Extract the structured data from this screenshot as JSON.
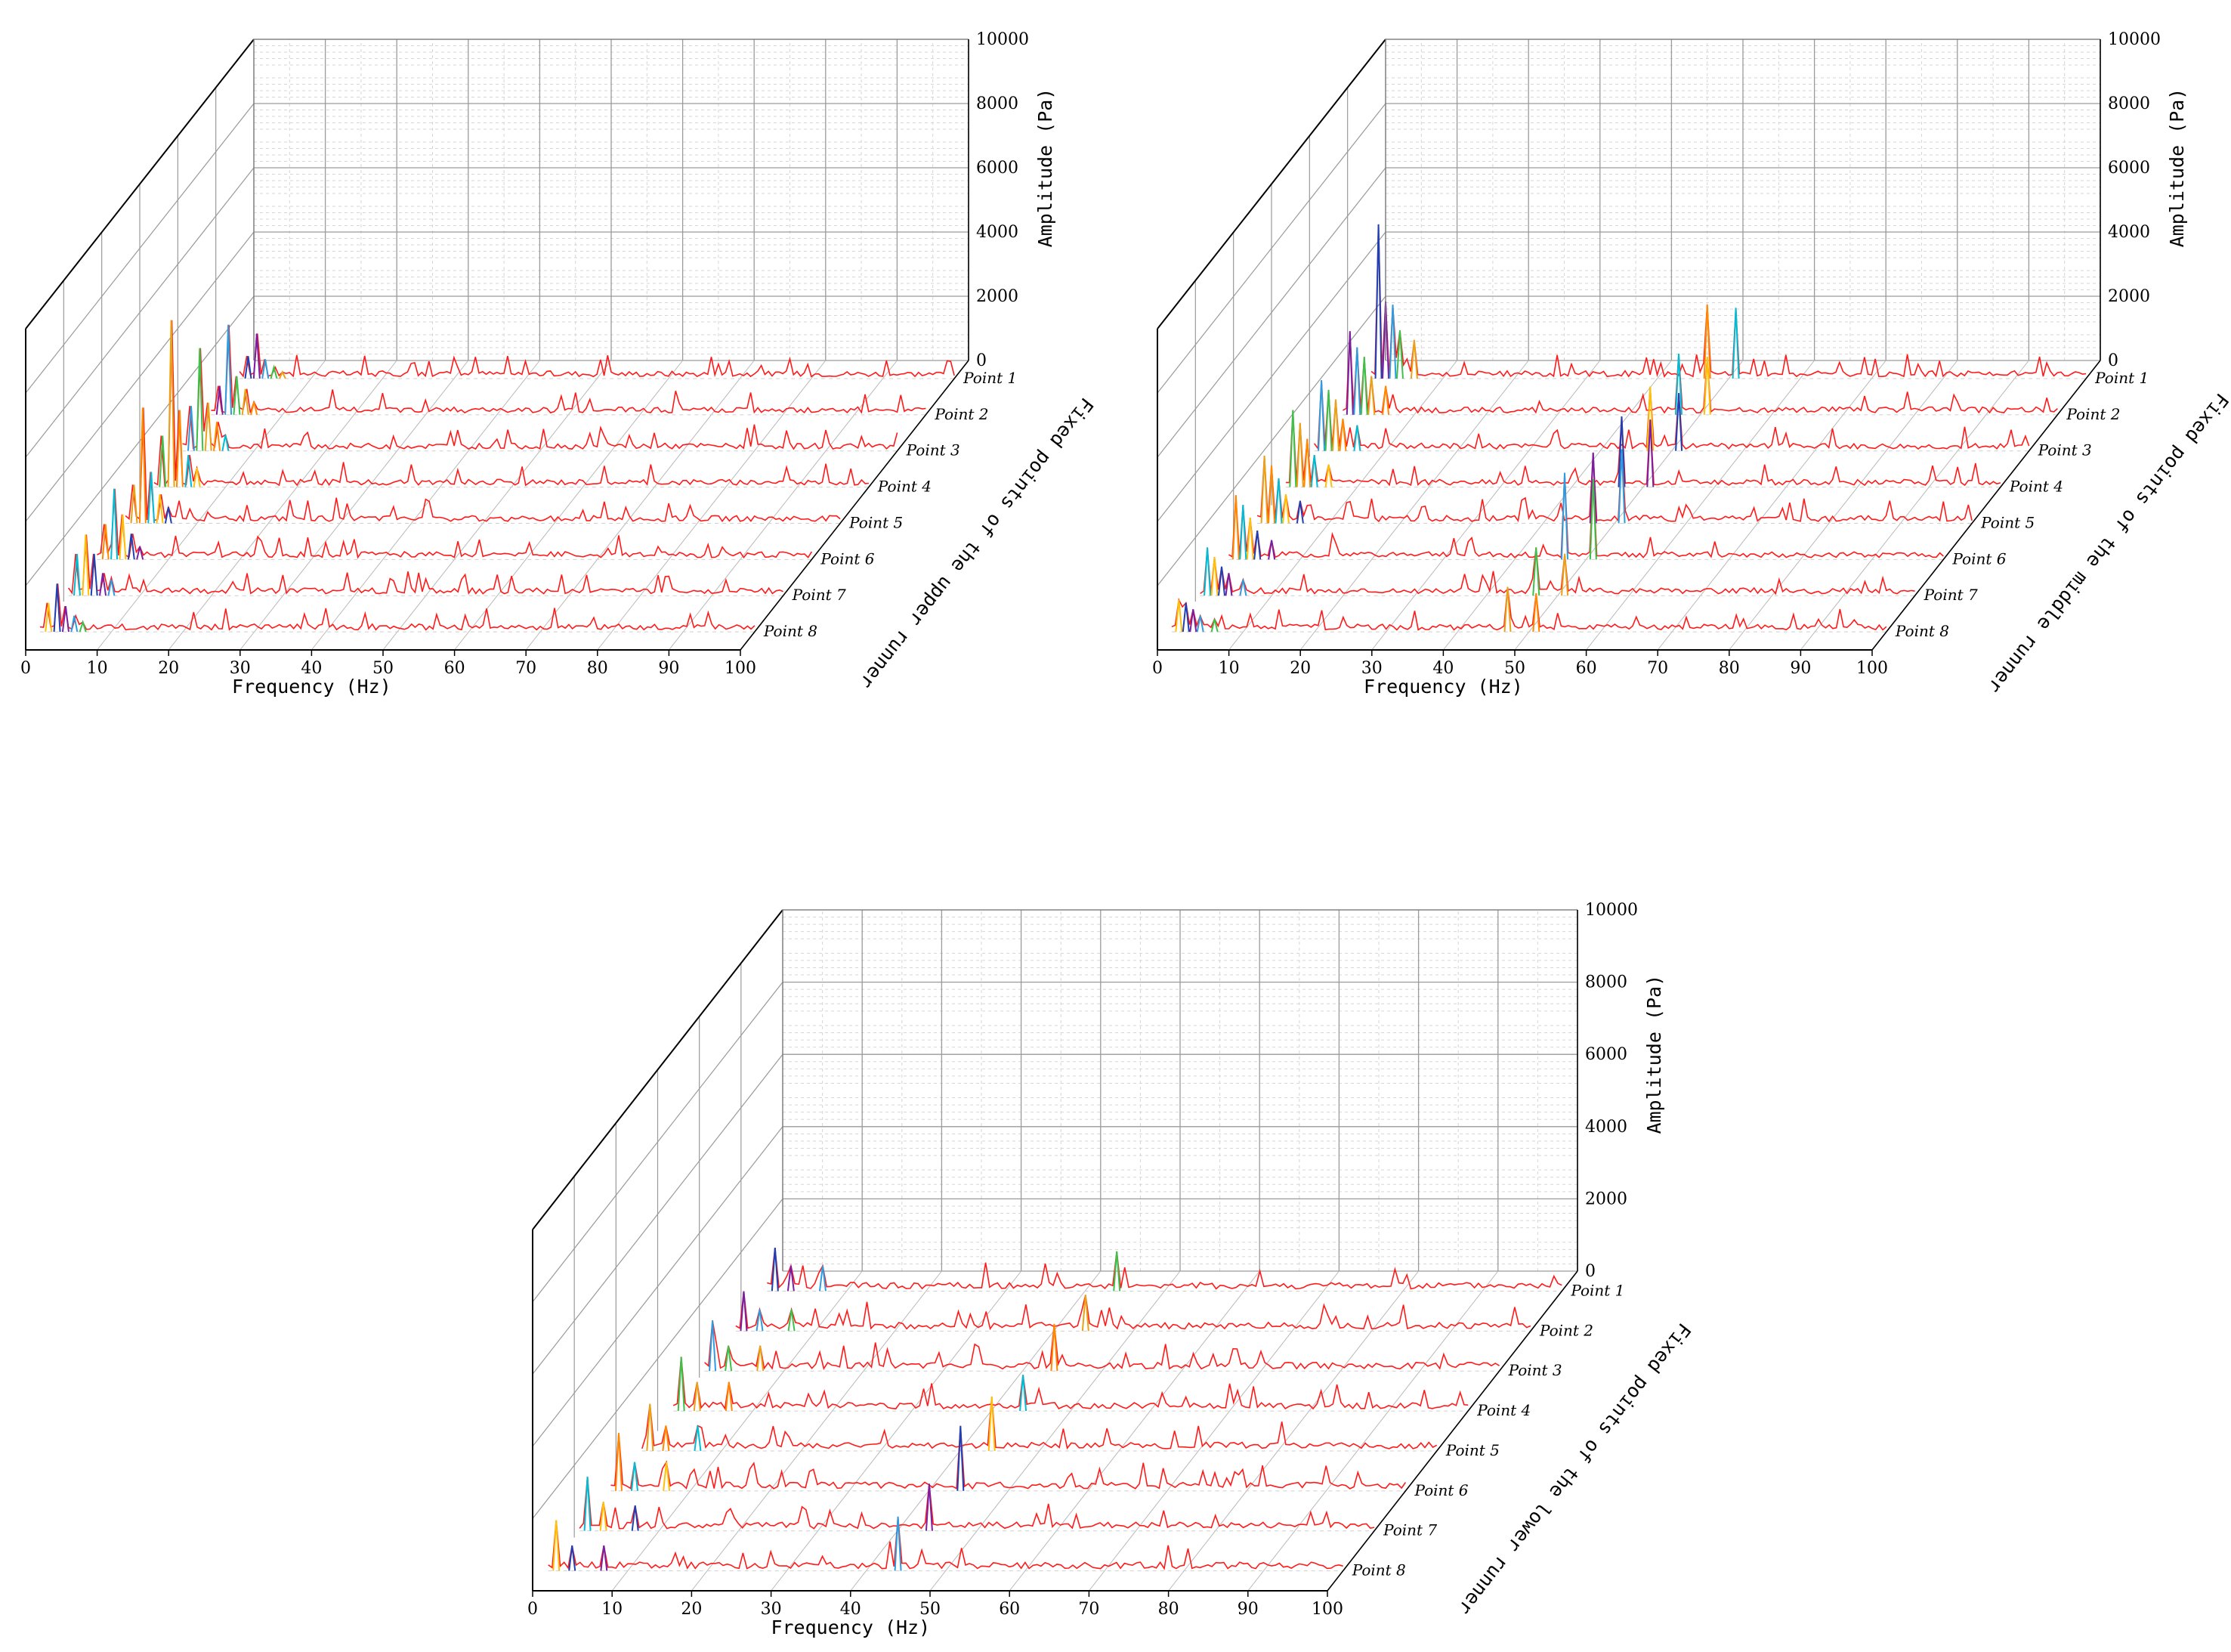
{
  "chart_data": [
    {
      "type": "waterfall-3d-line",
      "xlabel": "Frequency (Hz)",
      "zlabel": "Amplitude (Pa)",
      "ylabel": "Fixed points of the upper runner",
      "xlim": [
        0,
        100
      ],
      "zlim": [
        0,
        10000
      ],
      "xticks": [
        "0",
        "10",
        "20",
        "30",
        "40",
        "50",
        "60",
        "70",
        "80",
        "90",
        "100"
      ],
      "zticks": [
        "0",
        "2000",
        "4000",
        "6000",
        "8000",
        "10000"
      ],
      "grid": true,
      "series": [
        {
          "name": "Point 1",
          "peaks": [
            [
              1.2,
              700
            ],
            [
              2.4,
              1400
            ],
            [
              3.6,
              600
            ],
            [
              4.8,
              350
            ],
            [
              6,
              200
            ]
          ]
        },
        {
          "name": "Point 2",
          "peaks": [
            [
              1.2,
              900
            ],
            [
              2.4,
              2800
            ],
            [
              3.6,
              1200
            ],
            [
              4.8,
              800
            ],
            [
              6,
              400
            ]
          ]
        },
        {
          "name": "Point 3",
          "peaks": [
            [
              1.2,
              1400
            ],
            [
              2.4,
              3200
            ],
            [
              3.6,
              1500
            ],
            [
              4.8,
              900
            ],
            [
              6,
              500
            ]
          ]
        },
        {
          "name": "Point 4",
          "peaks": [
            [
              1.2,
              1600
            ],
            [
              2.4,
              5200
            ],
            [
              3.6,
              2400
            ],
            [
              4.8,
              1000
            ],
            [
              6,
              600
            ]
          ]
        },
        {
          "name": "Point 5",
          "peaks": [
            [
              1.2,
              1200
            ],
            [
              2.4,
              3600
            ],
            [
              3.6,
              1600
            ],
            [
              4.8,
              900
            ],
            [
              6,
              500
            ]
          ]
        },
        {
          "name": "Point 6",
          "peaks": [
            [
              1.2,
              1100
            ],
            [
              2.4,
              2200
            ],
            [
              3.6,
              1400
            ],
            [
              4.8,
              800
            ],
            [
              6,
              400
            ]
          ]
        },
        {
          "name": "Point 7",
          "peaks": [
            [
              1.2,
              1300
            ],
            [
              2.4,
              1900
            ],
            [
              3.6,
              1300
            ],
            [
              4.8,
              700
            ],
            [
              6,
              500
            ]
          ]
        },
        {
          "name": "Point 8",
          "peaks": [
            [
              1.2,
              900
            ],
            [
              2.4,
              1500
            ],
            [
              3.6,
              800
            ],
            [
              4.8,
              500
            ],
            [
              6,
              300
            ]
          ]
        }
      ]
    },
    {
      "type": "waterfall-3d-line",
      "xlabel": "Frequency (Hz)",
      "zlabel": "Amplitude (Pa)",
      "ylabel": "Fixed points of the middle runner",
      "xlim": [
        0,
        100
      ],
      "zlim": [
        0,
        10000
      ],
      "xticks": [
        "0",
        "10",
        "20",
        "30",
        "40",
        "50",
        "60",
        "70",
        "80",
        "90",
        "100"
      ],
      "zticks": [
        "0",
        "2000",
        "4000",
        "6000",
        "8000",
        "10000"
      ],
      "grid": true,
      "series": [
        {
          "name": "Point 1",
          "peaks": [
            [
              1,
              4800
            ],
            [
              2,
              2400
            ],
            [
              3,
              2300
            ],
            [
              4,
              1500
            ],
            [
              6,
              1200
            ],
            [
              47,
              2300
            ],
            [
              51,
              2200
            ]
          ]
        },
        {
          "name": "Point 2",
          "peaks": [
            [
              1,
              2600
            ],
            [
              2,
              2100
            ],
            [
              3,
              1800
            ],
            [
              4,
              1200
            ],
            [
              6,
              900
            ],
            [
              47,
              1900
            ],
            [
              51,
              1800
            ]
          ]
        },
        {
          "name": "Point 3",
          "peaks": [
            [
              1,
              2200
            ],
            [
              2,
              1900
            ],
            [
              3,
              1600
            ],
            [
              4,
              1000
            ],
            [
              6,
              800
            ],
            [
              47,
              2000
            ],
            [
              51,
              1800
            ]
          ]
        },
        {
          "name": "Point 4",
          "peaks": [
            [
              1,
              2400
            ],
            [
              2,
              2000
            ],
            [
              3,
              1500
            ],
            [
              4,
              1000
            ],
            [
              6,
              700
            ],
            [
              47,
              2200
            ],
            [
              51,
              2100
            ]
          ]
        },
        {
          "name": "Point 5",
          "peaks": [
            [
              1,
              2100
            ],
            [
              2,
              1800
            ],
            [
              3,
              1400
            ],
            [
              4,
              900
            ],
            [
              6,
              700
            ],
            [
              47,
              2200
            ],
            [
              51,
              2300
            ]
          ]
        },
        {
          "name": "Point 6",
          "peaks": [
            [
              1,
              2000
            ],
            [
              2,
              1700
            ],
            [
              3,
              1300
            ],
            [
              4,
              900
            ],
            [
              6,
              600
            ],
            [
              47,
              2700
            ],
            [
              51,
              2500
            ]
          ]
        },
        {
          "name": "Point 7",
          "peaks": [
            [
              1,
              1500
            ],
            [
              2,
              1200
            ],
            [
              3,
              900
            ],
            [
              4,
              700
            ],
            [
              6,
              500
            ],
            [
              47,
              1500
            ],
            [
              51,
              1300
            ]
          ]
        },
        {
          "name": "Point 8",
          "peaks": [
            [
              1,
              1000
            ],
            [
              2,
              900
            ],
            [
              3,
              700
            ],
            [
              4,
              500
            ],
            [
              6,
              400
            ],
            [
              47,
              1400
            ],
            [
              51,
              1200
            ]
          ]
        }
      ]
    },
    {
      "type": "waterfall-3d-line",
      "xlabel": "Frequency (Hz)",
      "zlabel": "Amplitude (Pa)",
      "ylabel": "Fixed points of the lower runner",
      "xlim": [
        0,
        100
      ],
      "zlim": [
        0,
        10000
      ],
      "xticks": [
        "0",
        "10",
        "20",
        "30",
        "40",
        "50",
        "60",
        "70",
        "80",
        "90",
        "100"
      ],
      "zticks": [
        "0",
        "2000",
        "4000",
        "6000",
        "8000",
        "10000"
      ],
      "grid": true,
      "series": [
        {
          "name": "Point 1",
          "peaks": [
            [
              1,
              1200
            ],
            [
              3,
              700
            ],
            [
              7,
              700
            ],
            [
              44,
              1100
            ]
          ]
        },
        {
          "name": "Point 2",
          "peaks": [
            [
              1,
              1100
            ],
            [
              3,
              600
            ],
            [
              7,
              600
            ],
            [
              44,
              1000
            ]
          ]
        },
        {
          "name": "Point 3",
          "peaks": [
            [
              1,
              1400
            ],
            [
              3,
              700
            ],
            [
              7,
              700
            ],
            [
              44,
              1300
            ]
          ]
        },
        {
          "name": "Point 4",
          "peaks": [
            [
              1,
              1500
            ],
            [
              3,
              800
            ],
            [
              7,
              800
            ],
            [
              44,
              1000
            ]
          ]
        },
        {
          "name": "Point 5",
          "peaks": [
            [
              1,
              1300
            ],
            [
              3,
              700
            ],
            [
              7,
              700
            ],
            [
              44,
              1500
            ]
          ]
        },
        {
          "name": "Point 6",
          "peaks": [
            [
              1,
              1600
            ],
            [
              3,
              800
            ],
            [
              7,
              800
            ],
            [
              44,
              1800
            ]
          ]
        },
        {
          "name": "Point 7",
          "peaks": [
            [
              1,
              1500
            ],
            [
              3,
              800
            ],
            [
              7,
              700
            ],
            [
              44,
              1300
            ]
          ]
        },
        {
          "name": "Point 8",
          "peaks": [
            [
              1,
              1400
            ],
            [
              3,
              700
            ],
            [
              7,
              700
            ],
            [
              44,
              1500
            ]
          ]
        }
      ]
    }
  ]
}
